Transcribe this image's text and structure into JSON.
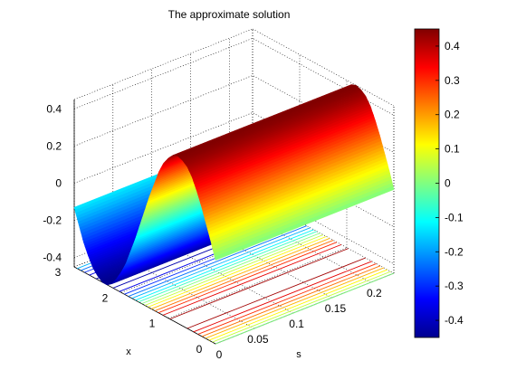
{
  "chart_data": {
    "type": "surface",
    "title": "The approximate solution",
    "xlabel": "s",
    "ylabel": "x",
    "zlabel": "",
    "s_range": [
      0,
      0.23
    ],
    "x_range": [
      0,
      3
    ],
    "z_range": [
      -0.45,
      0.45
    ],
    "s_ticks": [
      "0",
      "0.05",
      "0.1",
      "0.15",
      "0.2"
    ],
    "x_ticks": [
      "0",
      "1",
      "2",
      "3"
    ],
    "z_ticks": [
      "0.4",
      "0.2",
      "0",
      "-0.2",
      "-0.4"
    ],
    "grid": true,
    "colormap": "jet",
    "colorbar": {
      "range": [
        -0.45,
        0.45
      ],
      "ticks": [
        "0.4",
        "0.3",
        "0.2",
        "0.1",
        "0",
        "-0.1",
        "-0.2",
        "-0.3",
        "-0.4"
      ],
      "colors": [
        "#00008f",
        "#0000ff",
        "#0080ff",
        "#00ffff",
        "#80ff80",
        "#ffff00",
        "#ff8000",
        "#ff0000",
        "#800000"
      ]
    },
    "surface_profile": {
      "description_units": "u(s,x) approx 0.45*sin(2x) over s in [0,0.23], x in [0,3]",
      "x": [
        0.0,
        0.1,
        0.2,
        0.3,
        0.4,
        0.5,
        0.6,
        0.7,
        0.8,
        0.9,
        1.0,
        1.1,
        1.2,
        1.3,
        1.4,
        1.5,
        1.6,
        1.7,
        1.8,
        1.9,
        2.0,
        2.1,
        2.2,
        2.3,
        2.4,
        2.5,
        2.6,
        2.7,
        2.8,
        2.9,
        3.0
      ],
      "u": [
        0.0,
        0.09,
        0.17,
        0.25,
        0.32,
        0.38,
        0.42,
        0.44,
        0.45,
        0.44,
        0.41,
        0.37,
        0.31,
        0.23,
        0.15,
        0.06,
        -0.03,
        -0.12,
        -0.2,
        -0.28,
        -0.34,
        -0.39,
        -0.43,
        -0.45,
        -0.45,
        -0.43,
        -0.4,
        -0.35,
        -0.29,
        -0.21,
        -0.13
      ]
    }
  }
}
